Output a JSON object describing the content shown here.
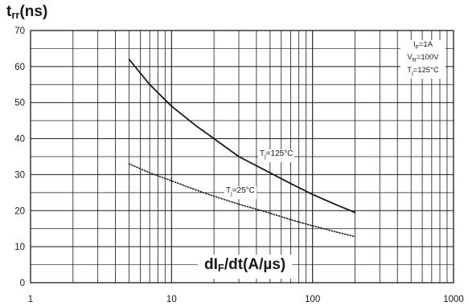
{
  "chart_data": {
    "type": "line",
    "y_title": {
      "main": "t",
      "sub": "rr",
      "unit": "(ns)"
    },
    "x_title": {
      "pre": "dI",
      "sub": "F",
      "post": "/dt(A/µs)"
    },
    "x_scale": "log",
    "xlim": [
      1,
      1000
    ],
    "ylim": [
      0,
      70
    ],
    "x_ticks": [
      "1",
      "10",
      "100",
      "1000"
    ],
    "y_ticks": [
      "0",
      "10",
      "20",
      "30",
      "40",
      "50",
      "60",
      "70"
    ],
    "grid": true,
    "legend_box": {
      "line1": {
        "main": "I",
        "sub": "F",
        "rest": "=1A"
      },
      "line2": {
        "main": "V",
        "sub": "R",
        "rest": "=100V"
      },
      "line3": {
        "main": "T",
        "sub": "j",
        "rest": "=125°C"
      }
    },
    "series": [
      {
        "name": "Tj=125°C",
        "label": {
          "main": "T",
          "sub": "j",
          "rest": "=125°C"
        },
        "style": "solid",
        "x": [
          5,
          7,
          10,
          15,
          20,
          30,
          50,
          70,
          100,
          150,
          200
        ],
        "y": [
          62,
          55,
          49,
          43.5,
          40,
          35,
          30.5,
          27.5,
          24.5,
          21.5,
          19.5
        ]
      },
      {
        "name": "Tj=25°C",
        "label": {
          "main": "T",
          "sub": "j",
          "rest": "=25°C"
        },
        "style": "dotted",
        "x": [
          5,
          7,
          10,
          15,
          20,
          30,
          50,
          70,
          100,
          150,
          200
        ],
        "y": [
          33,
          30.5,
          28.3,
          25.7,
          24,
          21.8,
          19.3,
          17.5,
          15.8,
          14,
          12.8
        ]
      }
    ]
  }
}
